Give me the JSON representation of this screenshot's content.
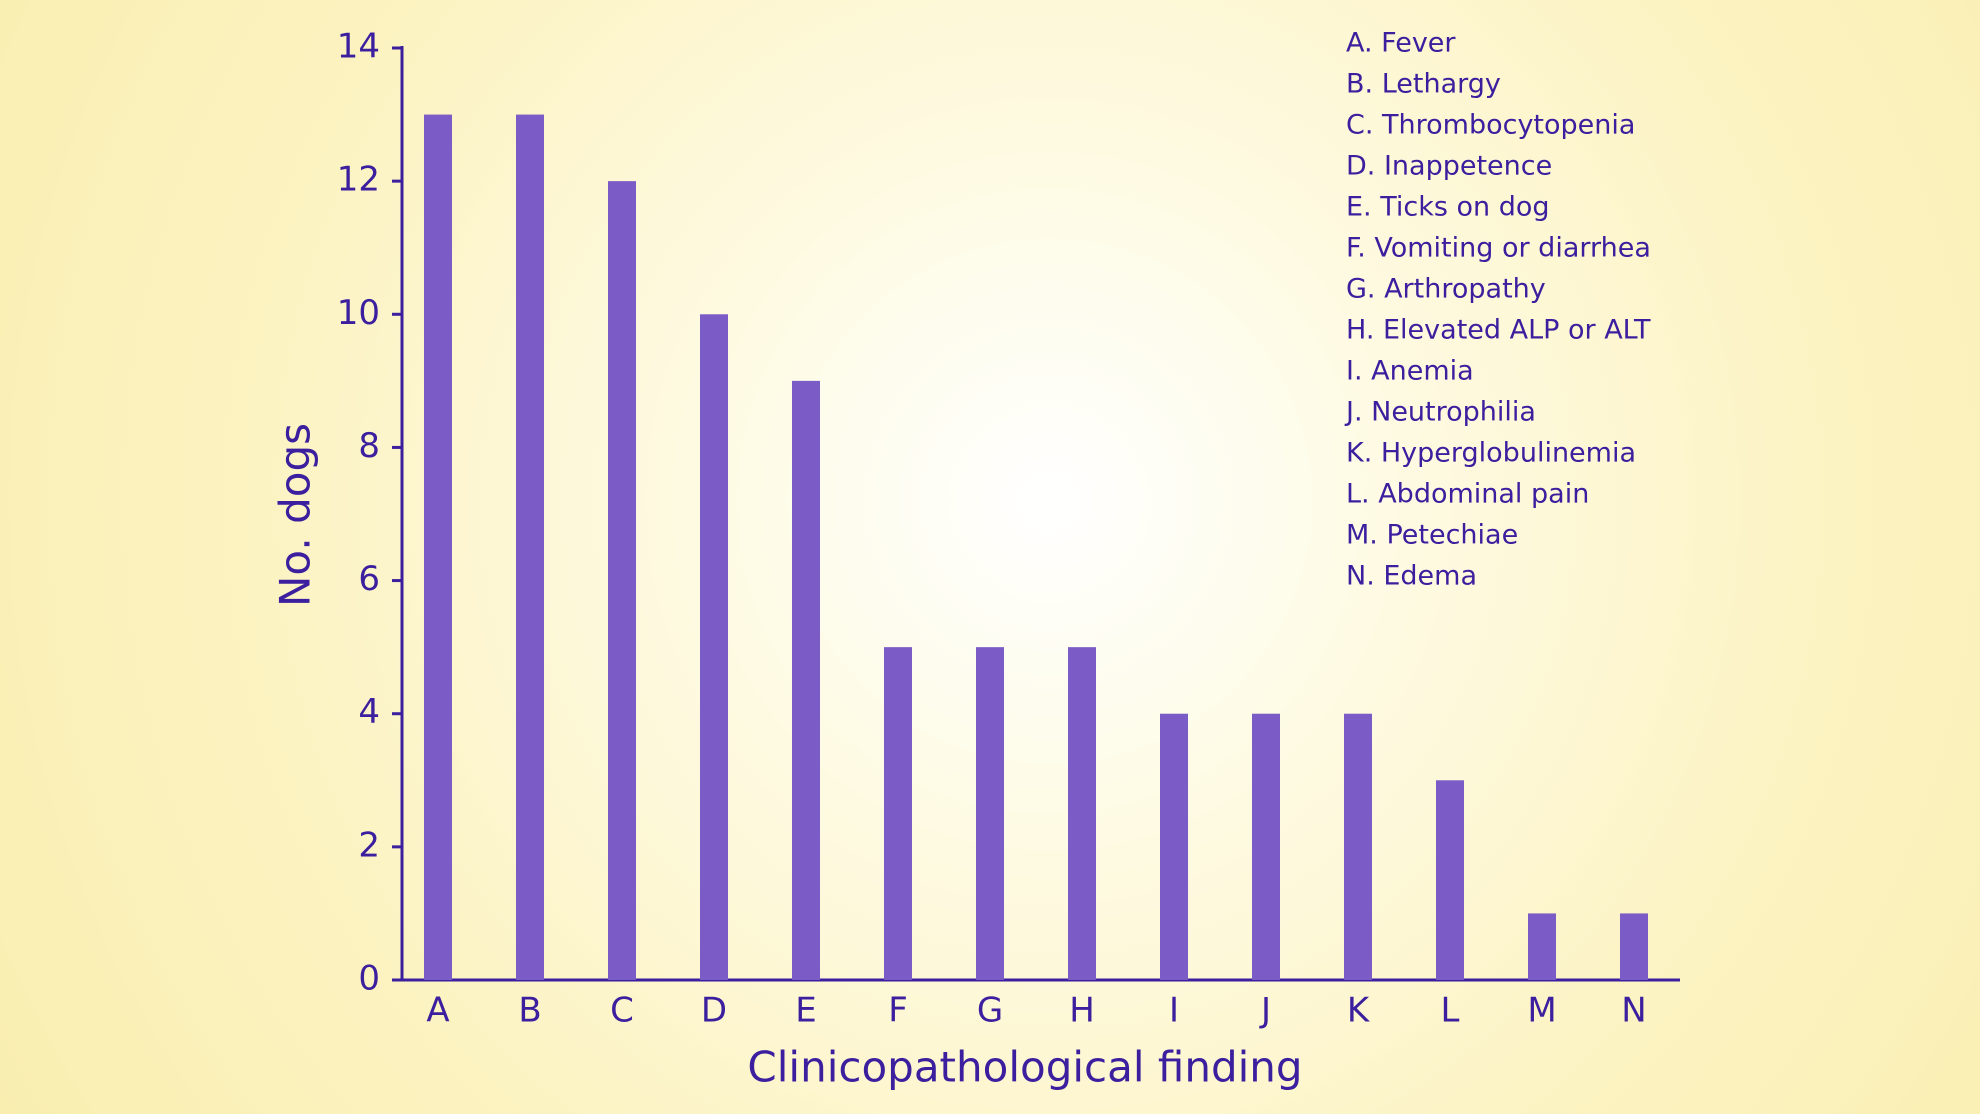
{
  "chart_data": {
    "type": "bar",
    "x_label": "Clinicopathological finding",
    "y_label": "No. dogs",
    "categories": [
      "A",
      "B",
      "C",
      "D",
      "E",
      "F",
      "G",
      "H",
      "I",
      "J",
      "K",
      "L",
      "M",
      "N"
    ],
    "values": [
      13,
      13,
      12,
      10,
      9,
      5,
      5,
      5,
      4,
      4,
      4,
      3,
      1,
      1
    ],
    "color": "#7b5bc6",
    "ylim": [
      0,
      14
    ],
    "yticks": [
      0,
      2,
      4,
      6,
      8,
      10,
      12,
      14
    ],
    "grid": false,
    "annotations": [
      "A. Fever",
      "B. Lethargy",
      "C. Thrombocytopenia",
      "D. Inappetence",
      "E. Ticks on dog",
      "F. Vomiting or diarrhea",
      "G. Arthropathy",
      "H. Elevated ALP or ALT",
      "I. Anemia",
      "J. Neutrophilia",
      "K. Hyperglobulinemia",
      "L. Abdominal pain",
      "M. Petechiae",
      "N. Edema"
    ]
  }
}
